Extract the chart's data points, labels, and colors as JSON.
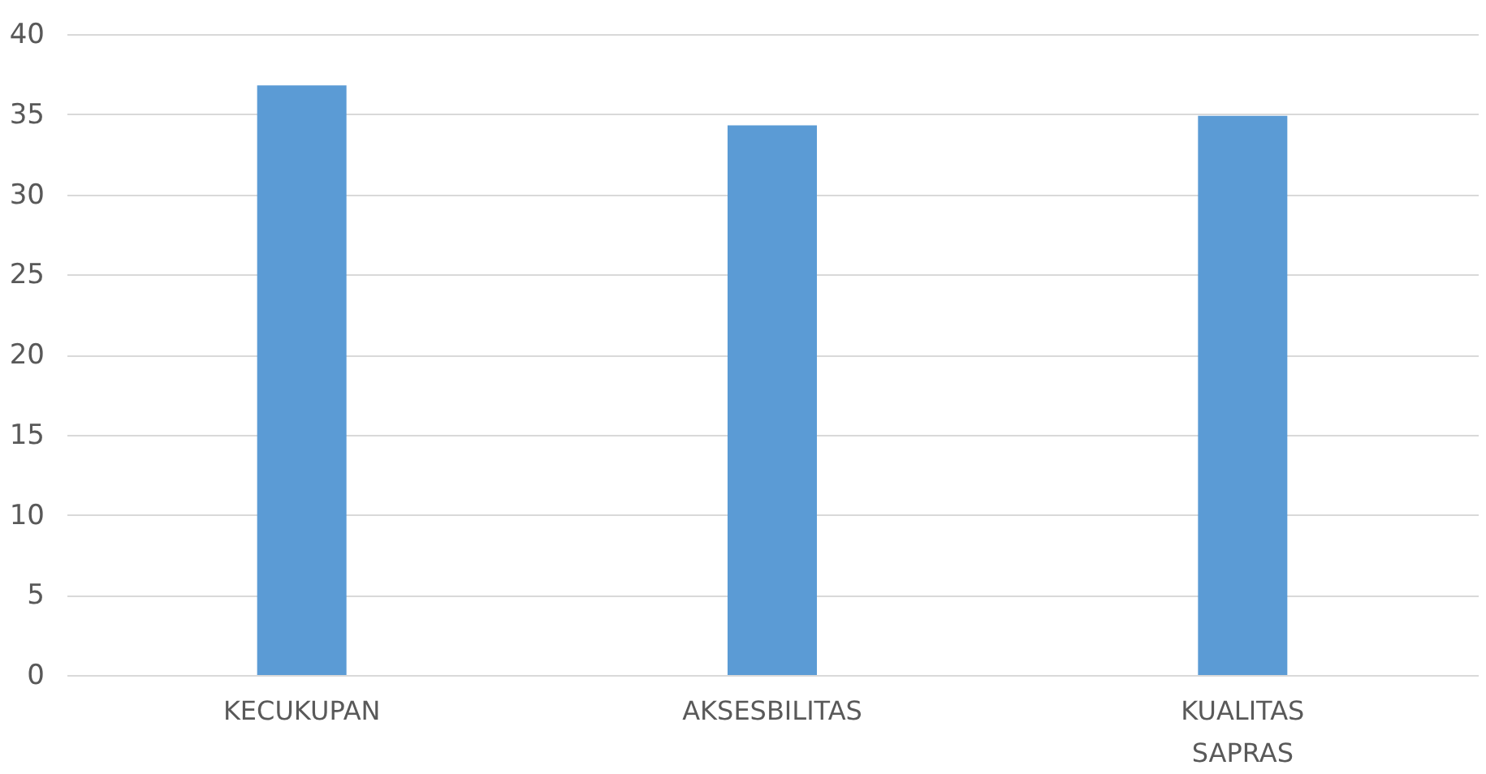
{
  "chart_data": {
    "type": "bar",
    "categories": [
      "KECUKUPAN",
      "AKSESBILITAS",
      "KUALITAS SAPRAS"
    ],
    "values": [
      36.8,
      34.3,
      34.9
    ],
    "color": "#5b9bd5",
    "ylim": [
      0,
      40
    ],
    "yticks": [
      0,
      5,
      10,
      15,
      20,
      25,
      30,
      35,
      40
    ],
    "grid": "y"
  }
}
